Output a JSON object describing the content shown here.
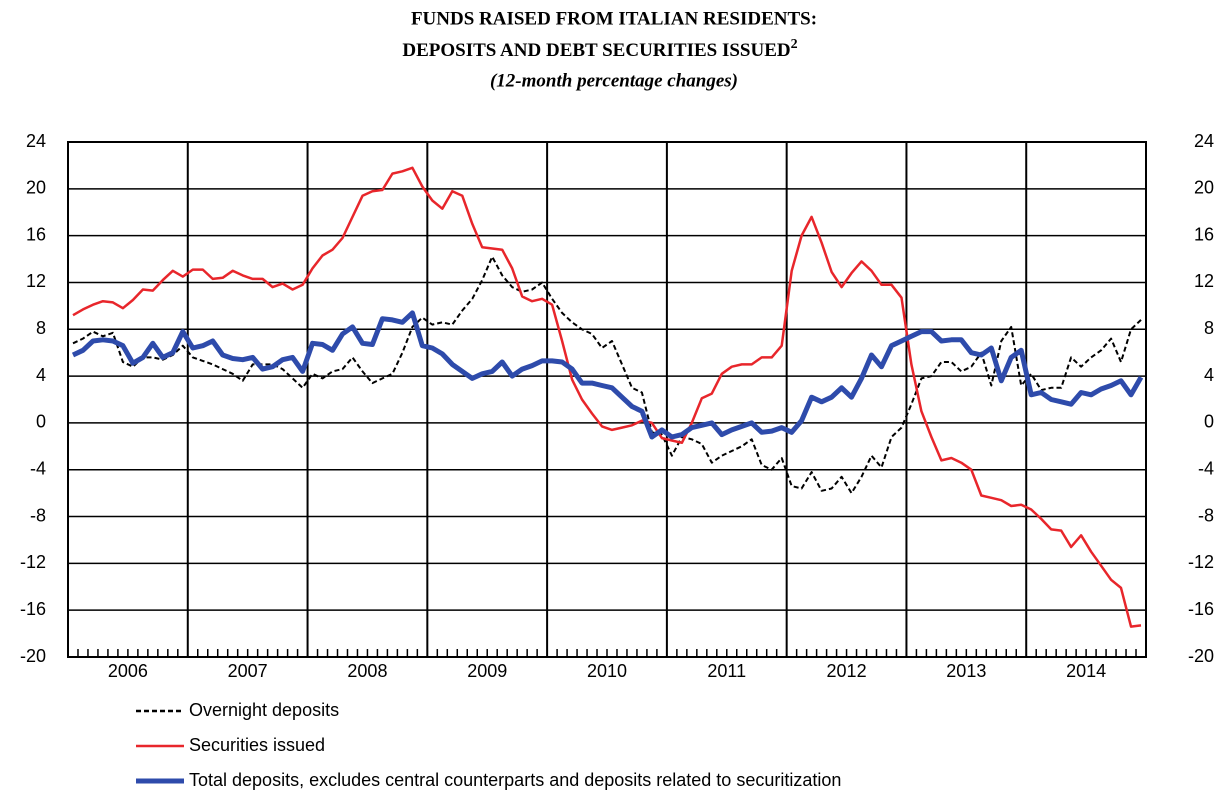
{
  "chart_data": {
    "type": "line",
    "title": [
      "FUNDS RAISED FROM ITALIAN RESIDENTS:",
      "DEPOSITS AND DEBT SECURITIES ISSUED"
    ],
    "title_superscript": "2",
    "subtitle": "(12-month percentage changes)",
    "categories": [
      "2006",
      "2007",
      "2008",
      "2009",
      "2010",
      "2011",
      "2012",
      "2013",
      "2014"
    ],
    "ylim": [
      -20,
      24
    ],
    "yticks": [
      -20,
      -16,
      -12,
      -8,
      -4,
      0,
      4,
      8,
      12,
      16,
      20,
      24
    ],
    "y2lim": [
      -20,
      24
    ],
    "y2ticks": [
      -20,
      -16,
      -12,
      -8,
      -4,
      0,
      4,
      8,
      12,
      16,
      20,
      24
    ],
    "grid": true,
    "series": [
      {
        "name": "Overnight deposits",
        "color": "#000000",
        "dashed": true,
        "values": [
          [
            6.8,
            7.2,
            7.8,
            7.4,
            7.7,
            5.2,
            4.8,
            5.6,
            5.6,
            5.4,
            5.8,
            6.6
          ],
          [
            5.6,
            5.3,
            5.0,
            4.6,
            4.2,
            3.6,
            5.0,
            5.0,
            5.0,
            4.6,
            3.8,
            3.0
          ],
          [
            4.2,
            3.8,
            4.4,
            4.6,
            5.6,
            4.4,
            3.4,
            3.8,
            4.2,
            6.0,
            8.2,
            9.0
          ],
          [
            8.4,
            8.6,
            8.4,
            9.6,
            10.6,
            12.2,
            14.2,
            12.6,
            11.6,
            11.2,
            11.4,
            12.0
          ],
          [
            10.6,
            9.4,
            8.6,
            8.0,
            7.6,
            6.4,
            7.0,
            5.0,
            3.0,
            2.6,
            -0.8,
            -1.0
          ],
          [
            -2.8,
            -1.2,
            -1.4,
            -1.8,
            -3.4,
            -2.8,
            -2.4,
            -2.0,
            -1.4,
            -3.6,
            -4.0,
            -3.0
          ],
          [
            -5.4,
            -5.6,
            -4.2,
            -5.8,
            -5.6,
            -4.6,
            -6.0,
            -4.6,
            -2.8,
            -3.8,
            -1.2,
            -0.4
          ],
          [
            1.6,
            3.8,
            4.0,
            5.2,
            5.2,
            4.4,
            4.8,
            6.0,
            3.2,
            7.0,
            8.2,
            3.2
          ],
          [
            4.2,
            2.8,
            3.0,
            3.0,
            5.6,
            4.8,
            5.6,
            6.2,
            7.2,
            5.2,
            8.0,
            8.8
          ]
        ]
      },
      {
        "name": "Securities issued",
        "color": "#e8262b",
        "dashed": false,
        "values": [
          [
            9.2,
            9.7,
            10.1,
            10.4,
            10.3,
            9.8,
            10.5,
            11.4,
            11.3,
            12.2,
            13.0,
            12.5
          ],
          [
            13.1,
            13.1,
            12.3,
            12.4,
            13.0,
            12.6,
            12.3,
            12.3,
            11.6,
            11.9,
            11.4,
            11.8
          ],
          [
            13.2,
            14.3,
            14.8,
            15.8,
            17.6,
            19.4,
            19.8,
            19.9,
            21.3,
            21.5,
            21.8,
            20.2
          ],
          [
            19.0,
            18.3,
            19.8,
            19.4,
            17.0,
            15.0,
            14.9,
            14.8,
            13.2,
            10.8,
            10.4,
            10.6
          ],
          [
            10.1,
            7.0,
            3.7,
            2.0,
            0.8,
            -0.3,
            -0.6,
            -0.4,
            -0.2,
            0.2,
            0.0,
            -1.3
          ],
          [
            -1.5,
            -1.7,
            0.0,
            2.1,
            2.5,
            4.2,
            4.8,
            5.0,
            5.0,
            5.6,
            5.6,
            6.6
          ],
          [
            13.0,
            16.0,
            17.6,
            15.4,
            12.9,
            11.6,
            12.8,
            13.8,
            13.0,
            11.8,
            11.8,
            10.7
          ],
          [
            5.0,
            1.0,
            -1.2,
            -3.2,
            -3.0,
            -3.4,
            -4.0,
            -6.2,
            -6.4,
            -6.6,
            -7.1,
            -7.0
          ],
          [
            -7.4,
            -8.2,
            -9.1,
            -9.2,
            -10.6,
            -9.6,
            -11.0,
            -12.2,
            -13.4,
            -14.1,
            -17.4,
            -17.3
          ]
        ]
      },
      {
        "name": "Total deposits, excludes central counterparts and deposits related to securitization",
        "color": "#2e4bab",
        "dashed": false,
        "values": [
          [
            5.8,
            6.2,
            7.0,
            7.1,
            7.0,
            6.6,
            5.1,
            5.6,
            6.8,
            5.6,
            6.0,
            7.8
          ],
          [
            6.4,
            6.6,
            7.0,
            5.8,
            5.5,
            5.4,
            5.6,
            4.6,
            4.8,
            5.4,
            5.6,
            4.4
          ],
          [
            6.8,
            6.7,
            6.2,
            7.6,
            8.2,
            6.8,
            6.7,
            8.9,
            8.8,
            8.6,
            9.4,
            6.6
          ],
          [
            6.4,
            5.9,
            5.0,
            4.4,
            3.8,
            4.2,
            4.4,
            5.2,
            4.0,
            4.6,
            4.9,
            5.3
          ],
          [
            5.3,
            5.2,
            4.6,
            3.4,
            3.4,
            3.2,
            3.0,
            2.2,
            1.4,
            1.0,
            -1.2,
            -0.6
          ],
          [
            -1.2,
            -1.0,
            -0.4,
            -0.2,
            0.0,
            -1.0,
            -0.6,
            -0.3,
            0.0,
            -0.8,
            -0.7,
            -0.4
          ],
          [
            -0.8,
            0.2,
            2.2,
            1.8,
            2.2,
            3.0,
            2.2,
            3.8,
            5.8,
            4.8,
            6.6,
            7.0
          ],
          [
            7.4,
            7.8,
            7.8,
            7.0,
            7.1,
            7.1,
            6.0,
            5.8,
            6.4,
            3.6,
            5.6,
            6.2
          ],
          [
            2.4,
            2.6,
            2.0,
            1.8,
            1.6,
            2.6,
            2.4,
            2.9,
            3.2,
            3.6,
            2.4,
            3.9
          ]
        ]
      }
    ]
  }
}
